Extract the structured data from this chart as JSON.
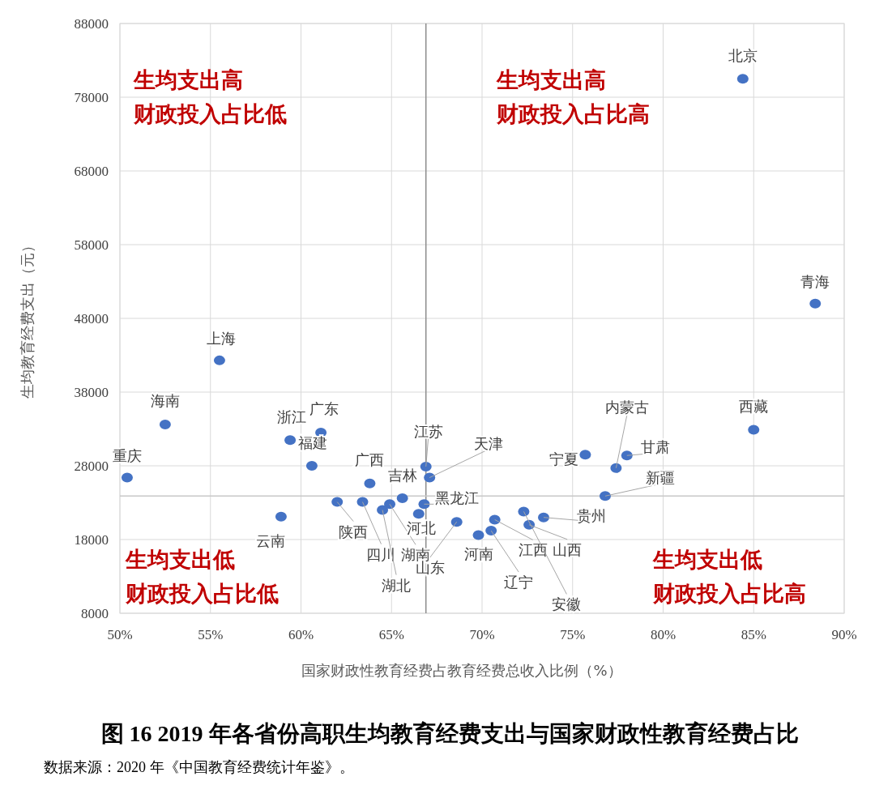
{
  "chart_data": {
    "type": "scatter",
    "title": "图 16 2019 年各省份高职生均教育经费支出与国家财政性教育经费占比",
    "xlabel": "国家财政性教育经费占教育经费总收入比例（%）",
    "ylabel": "生均教育经费支出（元）",
    "x": [
      84.4,
      88.4,
      55.5,
      52.5,
      50.4,
      59.4,
      61.1,
      60.6,
      58.9,
      85.0,
      75.7,
      78.0,
      77.4,
      76.8,
      73.4,
      72.6,
      70.7,
      70.5,
      69.8,
      72.3,
      62.0,
      63.4,
      64.9,
      64.5,
      65.6,
      63.8,
      66.8,
      66.5,
      68.6,
      66.9,
      67.1
    ],
    "series": [
      {
        "color": "#4472c4",
        "values": [
          80500,
          50000,
          42300,
          33600,
          26400,
          31500,
          32500,
          28000,
          21100,
          32900,
          29500,
          29400,
          27700,
          23900,
          21000,
          20000,
          20700,
          19200,
          18600,
          21800,
          23100,
          23100,
          22800,
          22000,
          23600,
          25600,
          22800,
          21500,
          20400,
          27900,
          26400
        ]
      }
    ],
    "xlim": [
      50,
      90
    ],
    "ylim": [
      8000,
      88000
    ],
    "xticks": [
      {
        "value": 50,
        "label": "50%"
      },
      {
        "value": 55,
        "label": "55%"
      },
      {
        "value": 60,
        "label": "60%"
      },
      {
        "value": 65,
        "label": "65%"
      },
      {
        "value": 70,
        "label": "70%"
      },
      {
        "value": 75,
        "label": "75%"
      },
      {
        "value": 80,
        "label": "80%"
      },
      {
        "value": 85,
        "label": "85%"
      },
      {
        "value": 90,
        "label": "90%"
      }
    ],
    "yticks": [
      8000,
      18000,
      28000,
      38000,
      48000,
      58000,
      68000,
      78000,
      88000
    ],
    "grid": true,
    "marker": "circle",
    "ref_lines": [
      {
        "axis": "x",
        "value": 66.9,
        "color": "#8c8c8c"
      },
      {
        "axis": "y",
        "value": 23900,
        "color": "#c8c8c8"
      }
    ],
    "annotations": [
      {
        "text": "北京",
        "x": 84.4,
        "y": 80500
      },
      {
        "text": "青海",
        "x": 88.4,
        "y": 50000
      },
      {
        "text": "上海",
        "x": 55.5,
        "y": 42300
      },
      {
        "text": "海南",
        "x": 52.5,
        "y": 33600
      },
      {
        "text": "重庆",
        "x": 50.4,
        "y": 26400
      },
      {
        "text": "浙江",
        "x": 59.4,
        "y": 31500
      },
      {
        "text": "广东",
        "x": 61.1,
        "y": 32500
      },
      {
        "text": "福建",
        "x": 60.6,
        "y": 28000
      },
      {
        "text": "云南",
        "x": 58.9,
        "y": 21100
      },
      {
        "text": "西藏",
        "x": 85.0,
        "y": 32900
      },
      {
        "text": "宁夏",
        "x": 75.7,
        "y": 29500
      },
      {
        "text": "甘肃",
        "x": 78.0,
        "y": 29400
      },
      {
        "text": "内蒙古",
        "x": 77.4,
        "y": 27700
      },
      {
        "text": "新疆",
        "x": 76.8,
        "y": 23900
      },
      {
        "text": "贵州",
        "x": 73.4,
        "y": 21000
      },
      {
        "text": "山西",
        "x": 72.6,
        "y": 20000
      },
      {
        "text": "江西",
        "x": 70.7,
        "y": 20700
      },
      {
        "text": "辽宁",
        "x": 70.5,
        "y": 19200
      },
      {
        "text": "河南",
        "x": 69.8,
        "y": 18600
      },
      {
        "text": "安徽",
        "x": 72.3,
        "y": 21800
      },
      {
        "text": "陕西",
        "x": 62.0,
        "y": 23100
      },
      {
        "text": "四川",
        "x": 63.4,
        "y": 23100
      },
      {
        "text": "湖南",
        "x": 64.9,
        "y": 22800
      },
      {
        "text": "湖北",
        "x": 64.5,
        "y": 22000
      },
      {
        "text": "吉林",
        "x": 65.6,
        "y": 23600
      },
      {
        "text": "广西",
        "x": 63.8,
        "y": 25600
      },
      {
        "text": "黑龙江",
        "x": 66.8,
        "y": 22800
      },
      {
        "text": "河北",
        "x": 66.5,
        "y": 21500
      },
      {
        "text": "山东",
        "x": 68.6,
        "y": 20400
      },
      {
        "text": "江苏",
        "x": 66.9,
        "y": 27900
      },
      {
        "text": "天津",
        "x": 67.1,
        "y": 26400
      },
      "生均支出高",
      "财政投入占比低",
      "生均支出高",
      "财政投入占比高",
      "生均支出低",
      "财政投入占比低",
      "生均支出低",
      "财政投入占比高",
      "数据来源：2020 年《中国教育经费统计年鉴》。"
    ]
  }
}
